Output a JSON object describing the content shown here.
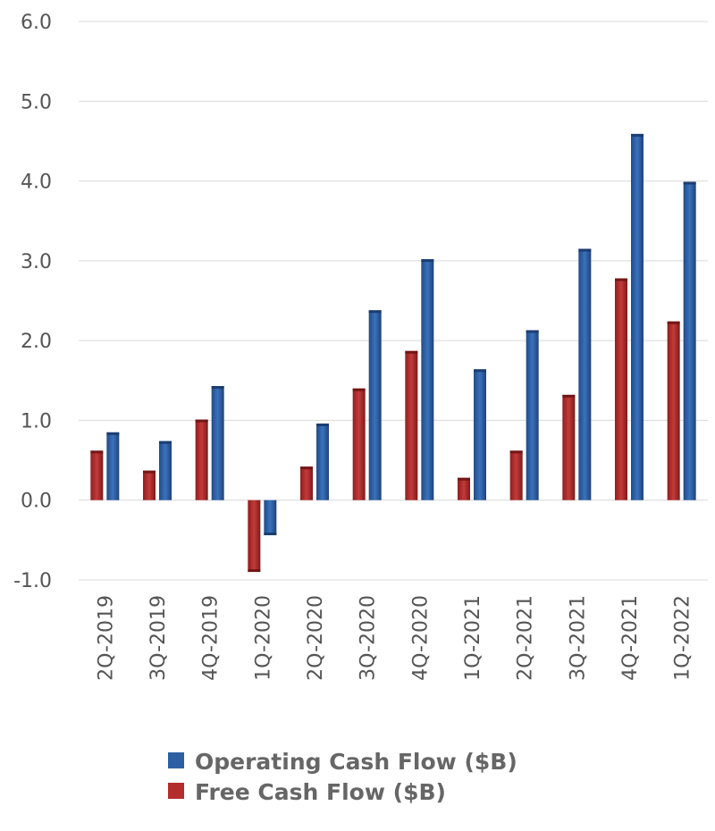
{
  "chart_data": {
    "type": "bar",
    "categories": [
      "2Q-2019",
      "3Q-2019",
      "4Q-2019",
      "1Q-2020",
      "2Q-2020",
      "3Q-2020",
      "4Q-2020",
      "1Q-2021",
      "2Q-2021",
      "3Q-2021",
      "4Q-2021",
      "1Q-2022"
    ],
    "series": [
      {
        "name": "Free Cash Flow ($B)",
        "color": "#b32d2d",
        "values": [
          0.62,
          0.37,
          1.01,
          -0.9,
          0.42,
          1.4,
          1.87,
          0.28,
          0.62,
          1.32,
          2.78,
          2.24
        ]
      },
      {
        "name": "Operating Cash Flow ($B)",
        "color": "#2e5fa3",
        "values": [
          0.85,
          0.74,
          1.43,
          -0.44,
          0.96,
          2.38,
          3.02,
          1.64,
          2.13,
          3.15,
          4.59,
          3.99
        ]
      }
    ],
    "ylim": [
      -1.0,
      6.0
    ],
    "yticks": [
      "-1.0",
      "0.0",
      "1.0",
      "2.0",
      "3.0",
      "4.0",
      "5.0",
      "6.0"
    ],
    "grid": true,
    "legend": {
      "placement": "bottom",
      "order": [
        "Operating Cash Flow ($B)",
        "Free Cash Flow ($B)"
      ]
    }
  }
}
